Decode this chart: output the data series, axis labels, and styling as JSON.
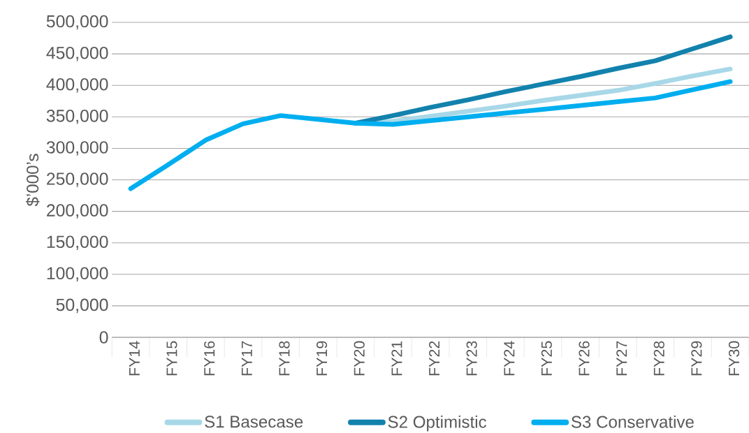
{
  "chart_data": {
    "type": "line",
    "ylabel": "$’000’s",
    "categories": [
      "FY14",
      "FY15",
      "FY16",
      "FY17",
      "FY18",
      "FY19",
      "FY20",
      "FY21",
      "FY22",
      "FY23",
      "FY24",
      "FY25",
      "FY26",
      "FY27",
      "FY28",
      "FY29",
      "FY30"
    ],
    "series": [
      {
        "name": "S1 Basecase",
        "color": "#a8d8e8",
        "values": [
          null,
          null,
          null,
          null,
          null,
          null,
          340000,
          343000,
          351000,
          359000,
          367000,
          376000,
          384000,
          392000,
          403000,
          415000,
          426000
        ]
      },
      {
        "name": "S2 Optimistic",
        "color": "#1282ad",
        "values": [
          null,
          null,
          null,
          null,
          null,
          null,
          340000,
          352000,
          365000,
          377000,
          390000,
          402000,
          414000,
          427000,
          439000,
          458000,
          477000
        ]
      },
      {
        "name": "S3 Conservative",
        "color": "#00aeef",
        "values": [
          236000,
          274000,
          313000,
          339000,
          352000,
          346000,
          340000,
          338000,
          344000,
          350000,
          356000,
          362000,
          368000,
          374000,
          380000,
          393000,
          406000
        ]
      }
    ],
    "ylim": [
      0,
      500000
    ],
    "yticks": [
      {
        "value": 0,
        "label": "0"
      },
      {
        "value": 50000,
        "label": "50,000"
      },
      {
        "value": 100000,
        "label": "100,000"
      },
      {
        "value": 150000,
        "label": "150,000"
      },
      {
        "value": 200000,
        "label": "200,000"
      },
      {
        "value": 250000,
        "label": "250,000"
      },
      {
        "value": 300000,
        "label": "300,000"
      },
      {
        "value": 350000,
        "label": "350,000"
      },
      {
        "value": 400000,
        "label": "400,000"
      },
      {
        "value": 450000,
        "label": "450,000"
      },
      {
        "value": 500000,
        "label": "500,000"
      }
    ],
    "grid": "y",
    "legend": "bottom",
    "marker": "none",
    "line_style": "solid"
  }
}
